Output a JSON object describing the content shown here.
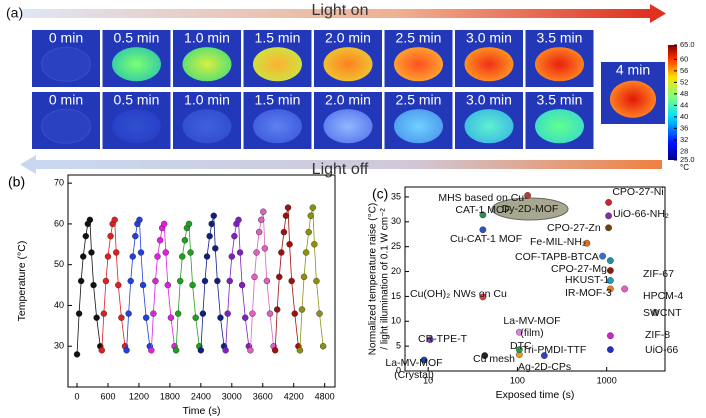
{
  "panel_a": {
    "label": "(a)",
    "light_on": "Light on",
    "light_off": "Light off",
    "row1": [
      "0 min",
      "0.5 min",
      "1.0 min",
      "1.5 min",
      "2.0 min",
      "2.5 min",
      "3.0 min",
      "3.5 min"
    ],
    "row2": [
      "0 min",
      "0.5 min",
      "1.0 min",
      "1.5 min",
      "2.0 min",
      "2.5 min",
      "3.0 min",
      "3.5 min"
    ],
    "final": "4 min",
    "colorbar": {
      "clim": [
        25,
        65
      ],
      "ticks": [
        {
          "value": 65,
          "label": "65.0"
        },
        60,
        56,
        52,
        48,
        44,
        40,
        36,
        32,
        28,
        {
          "value": 25,
          "label": "25.0"
        }
      ],
      "unit": "°C"
    }
  },
  "chart_data": [
    {
      "type": "scatter",
      "panel_label": "(b)",
      "x_label": "Time (s)",
      "y_label": "Temperature (°C)",
      "xlim": [
        -175,
        5000
      ],
      "xticks": [
        0,
        600,
        1200,
        1800,
        2400,
        3000,
        3600,
        4200,
        4800
      ],
      "ylim": [
        20,
        72
      ],
      "yticks": [
        30,
        40,
        50,
        60,
        70
      ],
      "series": [
        {
          "color": "#111111",
          "x": [
            0,
            40,
            80,
            120,
            170,
            210,
            250,
            280,
            320,
            380,
            450
          ],
          "values": [
            28,
            38,
            46,
            52,
            57,
            60,
            61,
            53,
            45,
            37,
            30
          ]
        },
        {
          "color": "#e02020",
          "x": [
            480,
            520,
            560,
            600,
            650,
            690,
            730,
            760,
            800,
            860,
            930
          ],
          "values": [
            29,
            38,
            46,
            52,
            57,
            60,
            61,
            53,
            45,
            37,
            30
          ]
        },
        {
          "color": "#2040e0",
          "x": [
            960,
            1000,
            1040,
            1080,
            1130,
            1170,
            1210,
            1240,
            1280,
            1340,
            1410
          ],
          "values": [
            29,
            38,
            46,
            52,
            57,
            60,
            61,
            53,
            45,
            37,
            30
          ]
        },
        {
          "color": "#e020e0",
          "x": [
            1440,
            1480,
            1520,
            1560,
            1610,
            1650,
            1690,
            1720,
            1760,
            1820,
            1890
          ],
          "values": [
            29,
            38,
            46,
            52,
            56,
            59,
            60,
            53,
            45,
            37,
            30
          ]
        },
        {
          "color": "#20a020",
          "x": [
            1920,
            1960,
            2000,
            2040,
            2090,
            2130,
            2170,
            2200,
            2240,
            2300,
            2370
          ],
          "values": [
            29,
            38,
            46,
            52,
            56,
            59,
            60,
            53,
            45,
            37,
            30
          ]
        },
        {
          "color": "#102080",
          "x": [
            2400,
            2440,
            2480,
            2520,
            2570,
            2610,
            2650,
            2680,
            2720,
            2780,
            2850
          ],
          "values": [
            29,
            38,
            46,
            52,
            57,
            60,
            62,
            54,
            46,
            37,
            30
          ]
        },
        {
          "color": "#8020c0",
          "x": [
            2880,
            2920,
            2960,
            3000,
            3050,
            3090,
            3130,
            3160,
            3200,
            3260,
            3330
          ],
          "values": [
            29,
            38,
            46,
            52,
            57,
            60,
            61,
            53,
            45,
            37,
            30
          ]
        },
        {
          "color": "#e060c0",
          "x": [
            3360,
            3400,
            3440,
            3480,
            3530,
            3570,
            3610,
            3640,
            3680,
            3740,
            3810
          ],
          "values": [
            29,
            38,
            47,
            53,
            58,
            61,
            63,
            54,
            46,
            38,
            30
          ]
        },
        {
          "color": "#a01010",
          "x": [
            3840,
            3880,
            3920,
            3960,
            4010,
            4050,
            4090,
            4120,
            4160,
            4220,
            4290
          ],
          "values": [
            29,
            39,
            47,
            53,
            58,
            62,
            64,
            55,
            46,
            38,
            30
          ]
        },
        {
          "color": "#909010",
          "x": [
            4320,
            4360,
            4400,
            4440,
            4490,
            4530,
            4570,
            4600,
            4640,
            4700,
            4770
          ],
          "values": [
            29,
            39,
            47,
            53,
            58,
            62,
            64,
            55,
            46,
            38,
            30
          ]
        }
      ]
    },
    {
      "type": "scatter",
      "panel_label": "(c)",
      "x_label": "Exposed time (s)",
      "y_label": "Normalized temperature raise (°C)",
      "y_label2": "/ light illumination of 0.1 W cm⁻²",
      "xscale": "log",
      "xlim": [
        5.5,
        4500
      ],
      "xticks": [
        10,
        100,
        1000
      ],
      "ylim": [
        0,
        37
      ],
      "yticks": [
        0,
        5,
        10,
        15,
        20,
        25,
        30,
        35
      ],
      "x": [
        130,
        41,
        41,
        1050,
        1050,
        1050,
        600,
        900,
        1100,
        1100,
        1100,
        1100,
        1590,
        3500,
        1100,
        1100,
        41,
        105,
        10.5,
        105,
        43,
        105,
        200,
        9
      ],
      "values": [
        35.3,
        31.4,
        28.4,
        33.9,
        31.2,
        28.8,
        25.7,
        23.1,
        22.2,
        20.2,
        18.2,
        16.5,
        16.5,
        11.8,
        7.1,
        4.3,
        14.9,
        7.8,
        6.3,
        3.3,
        3.1,
        4.3,
        3.1,
        2.2
      ],
      "point_labels": [
        "Dy-2D-MOF",
        "MHS based on Cu-CAT-1 MOF",
        "Cu-CAT-1 MOF",
        "CPO-27-Ni",
        "UiO-66-NH₂",
        "CPO-27-Zn",
        "Fe-MIL-NH₂",
        "COF-TAPB-BTCA",
        "CPO-27-Mg",
        "ZIF-67",
        "HKUST-1",
        "IR-MOF-3",
        "HPCM-4",
        "SWCNT",
        "ZIF-8",
        "UiO-66",
        "Cu(OH)₂ NWs on Cu",
        "La-MV-MOF (film)",
        "CR-TPE-T",
        "DTC",
        "Cu mesh",
        "Tri-PMDI-TTF",
        "Ag-2D-CPs",
        "La-MV-MOF (Crystal)"
      ],
      "colors": [
        "#c0392b",
        "#2e8b57",
        "#3050c0",
        "#d02030",
        "#8030a0",
        "#704010",
        "#e07020",
        "#3070d0",
        "#2090a0",
        "#802010",
        "#20a0c0",
        "#e08020",
        "#e060c0",
        "#888888",
        "#d020d0",
        "#2030c0",
        "#e04040",
        "#e080e0",
        "#8040c0",
        "#e0a020",
        "#222222",
        "#20a040",
        "#3040c0",
        "#2040a0"
      ]
    }
  ]
}
